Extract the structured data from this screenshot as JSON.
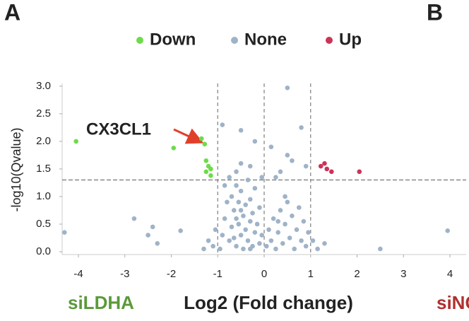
{
  "chart_data": {
    "type": "scatter",
    "panel_labels": [
      "A",
      "B"
    ],
    "annotation": "CX3CL1",
    "xlabel": "Log2 (Fold change)",
    "ylabel": "-log10(Qvalue)",
    "left_group": "siLDHA",
    "right_group": "siNC",
    "xlim": [
      -4.35,
      4.35
    ],
    "ylim": [
      0,
      3.05
    ],
    "xticks": [
      -4,
      -3,
      -2,
      -1,
      0,
      1,
      2,
      3,
      4
    ],
    "yticks": [
      {
        "value": 0,
        "label": "0.0"
      },
      {
        "value": 0.5,
        "label": "0.5"
      },
      {
        "value": 1,
        "label": "1.0"
      },
      {
        "value": 1.5,
        "label": "1.5"
      },
      {
        "value": 2,
        "label": "2.0"
      },
      {
        "value": 2.5,
        "label": "2.5"
      },
      {
        "value": 3,
        "label": "3.0"
      }
    ],
    "vlines": [
      -1,
      0,
      1
    ],
    "hline": 1.3,
    "series": [
      {
        "name": "Down",
        "color": "#6ddc4a",
        "x": [
          -4.05,
          -1.95,
          -1.35,
          -1.28,
          -1.25,
          -1.2,
          -1.25,
          -1.15,
          -1.15
        ],
        "values": [
          2.0,
          1.88,
          2.05,
          1.95,
          1.65,
          1.55,
          1.45,
          1.5,
          1.38
        ]
      },
      {
        "name": "None",
        "color": "#9fb3c8",
        "x": [
          -0.95,
          -0.9,
          -0.85,
          -0.8,
          -0.75,
          -0.7,
          -0.7,
          -0.65,
          -0.6,
          -0.6,
          -0.55,
          -0.55,
          -0.5,
          -0.5,
          -0.45,
          -0.45,
          -0.4,
          -0.4,
          -0.35,
          -0.35,
          -0.3,
          -0.3,
          -0.25,
          -0.25,
          -0.2,
          -0.2,
          -0.15,
          -0.1,
          -0.1,
          -0.05,
          -1.1,
          -1.05,
          -1.2,
          -1.3,
          -0.85,
          -0.75,
          -0.6,
          -0.5,
          -0.65,
          -0.3,
          0.05,
          0.1,
          0.15,
          0.2,
          0.25,
          0.3,
          0.35,
          0.4,
          0.45,
          0.5,
          0.55,
          0.6,
          0.65,
          0.7,
          0.75,
          0.8,
          0.85,
          0.9,
          0.95,
          1.05,
          1.15,
          1.3,
          0.45,
          0.3,
          0.5,
          -0.9,
          -0.5,
          -0.2,
          0.8,
          0.15,
          0.5,
          0.6,
          -0.5,
          3.95,
          -2.8,
          -2.4,
          -2.5,
          -1.8,
          -4.3,
          -2.3,
          2.5,
          -0.3,
          -0.6,
          0.9,
          0.35,
          0.25,
          -0.05
        ],
        "values": [
          0.05,
          0.3,
          0.6,
          0.9,
          0.2,
          0.45,
          1.0,
          0.75,
          0.1,
          1.2,
          0.5,
          0.9,
          0.3,
          1.1,
          0.65,
          0.05,
          0.85,
          0.4,
          1.3,
          0.2,
          0.55,
          0.95,
          0.1,
          0.7,
          0.35,
          1.15,
          0.5,
          0.15,
          0.8,
          0.3,
          0.1,
          0.4,
          0.2,
          0.05,
          1.2,
          1.35,
          0.6,
          0.75,
          0.25,
          0.05,
          0.1,
          0.4,
          0.2,
          0.6,
          0.05,
          0.35,
          0.75,
          0.15,
          0.5,
          0.9,
          0.25,
          0.65,
          0.05,
          0.4,
          0.8,
          0.2,
          0.55,
          0.1,
          0.35,
          0.2,
          0.05,
          0.15,
          1.0,
          0.55,
          2.97,
          2.3,
          2.2,
          2.0,
          2.25,
          1.9,
          1.75,
          1.65,
          1.6,
          0.38,
          0.6,
          0.45,
          0.3,
          0.38,
          0.35,
          0.15,
          0.05,
          1.55,
          1.45,
          1.55,
          1.45,
          1.35,
          1.35
        ]
      },
      {
        "name": "Up",
        "color": "#cc3358",
        "x": [
          1.22,
          1.3,
          1.35,
          1.45,
          2.05
        ],
        "values": [
          1.55,
          1.6,
          1.5,
          1.45,
          1.45
        ]
      }
    ]
  }
}
